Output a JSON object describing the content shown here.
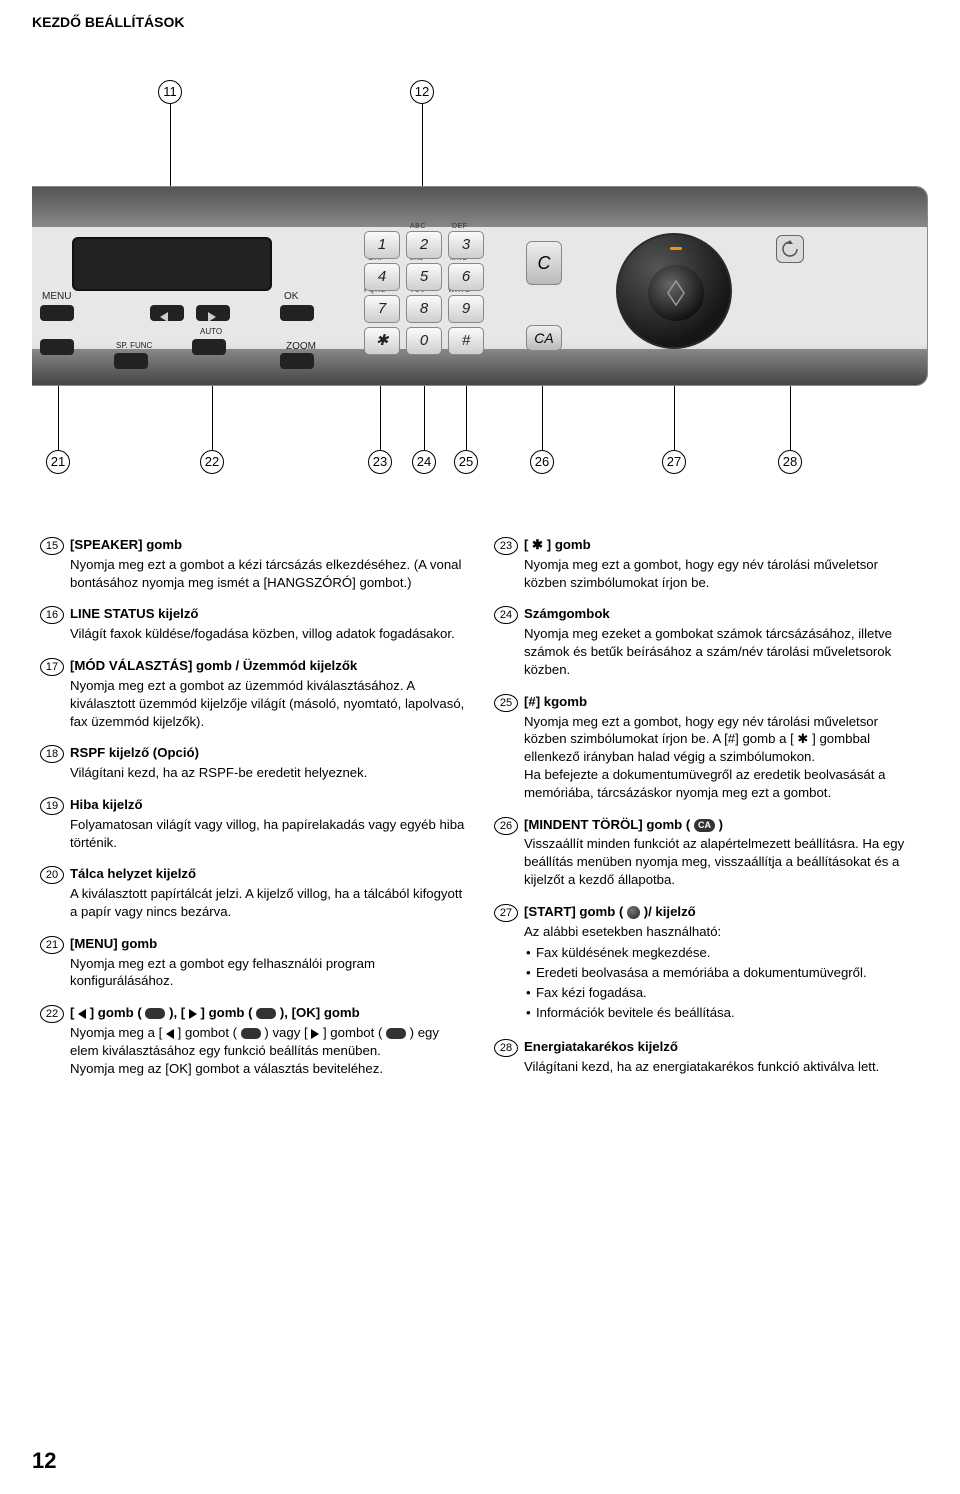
{
  "header": "KEZDŐ BEÁLLÍTÁSOK",
  "page_number": "12",
  "panel": {
    "menu": "MENU",
    "ok": "OK",
    "zoom": "ZOOM",
    "spfunc": "SP. FUNC",
    "auto": "AUTO",
    "c": "C",
    "ca": "CA",
    "keypad_labels": {
      "abc": "ABC",
      "def": "DEF",
      "ghi": "GHI",
      "jkl": "JKL",
      "mno": "MNO",
      "pqrs": "PQRS",
      "tuv": "TUV",
      "wxyz": "WXYZ"
    },
    "keys": [
      "1",
      "2",
      "3",
      "4",
      "5",
      "6",
      "7",
      "8",
      "9",
      "✱",
      "0",
      "#"
    ]
  },
  "callouts_top": {
    "c11": "11",
    "c12": "12"
  },
  "callouts_bot": {
    "c21": "21",
    "c22": "22",
    "c23": "23",
    "c24": "24",
    "c25": "25",
    "c26": "26",
    "c27": "27",
    "c28": "28"
  },
  "left": [
    {
      "n": "15",
      "title": "[SPEAKER] gomb",
      "desc": "Nyomja meg ezt a gombot a kézi tárcsázás elkezdéséhez. (A vonal bontásához nyomja meg ismét a [HANGSZÓRÓ] gombot.)"
    },
    {
      "n": "16",
      "title": "LINE STATUS kijelző",
      "desc": "Világít faxok küldése/fogadása közben, villog adatok fogadásakor."
    },
    {
      "n": "17",
      "title": "[MÓD VÁLASZTÁS] gomb / Üzemmód kijelzők",
      "desc": "Nyomja meg ezt a gombot az üzemmód kiválasztásához. A kiválasztott üzemmód kijelzője világít (másoló, nyomtató, lapolvasó, fax üzemmód kijelzők)."
    },
    {
      "n": "18",
      "title": "RSPF kijelző (Opció)",
      "desc": "Világítani kezd, ha az RSPF-be eredetit helyeznek."
    },
    {
      "n": "19",
      "title": "Hiba kijelző",
      "desc": "Folyamatosan világít vagy villog, ha papírelakadás vagy egyéb hiba történik."
    },
    {
      "n": "20",
      "title": "Tálca helyzet kijelző",
      "desc": "A kiválasztott papírtálcát jelzi. A kijelző villog, ha a tálcából kifogyott a papír vagy nincs bezárva."
    },
    {
      "n": "21",
      "title": "[MENU] gomb",
      "desc": "Nyomja meg ezt a gombot egy felhasználói program konfigurálásához."
    },
    {
      "n": "22",
      "title_html": "[ <tri-l></tri-l> ] gomb ( <pill></pill> ), [ <tri-r></tri-r> ] gomb ( <pill></pill> ), [OK] gomb",
      "desc_html": "Nyomja meg a [ <tri-l></tri-l> ] gombot ( <pill></pill> ) vagy [ <tri-r></tri-r> ] gombot ( <pill></pill> ) egy elem kiválasztásához egy funkció beállítás menüben.<br>Nyomja meg az [OK] gombot a választás beviteléhez."
    }
  ],
  "right": [
    {
      "n": "23",
      "title": "[ ✱ ] gomb",
      "desc": "Nyomja meg ezt a gombot, hogy egy név tárolási műveletsor közben szimbólumokat írjon be."
    },
    {
      "n": "24",
      "title": "Számgombok",
      "desc": "Nyomja meg ezeket a gombokat számok tárcsázásához, illetve számok és betűk beírásához a szám/név tárolási műveletsorok közben."
    },
    {
      "n": "25",
      "title": "[#] kgomb",
      "desc": "Nyomja meg ezt a gombot, hogy egy név tárolási műveletsor közben szimbólumokat írjon be. A [#] gomb a [ ✱ ] gombbal ellenkező irányban halad végig a szimbólumokon.\nHa befejezte a dokumentumüvegről az eredetik beolvasását a memóriába, tárcsázáskor nyomja meg ezt a gombot."
    },
    {
      "n": "26",
      "title_html": "[MINDENT TÖRÖL] gomb ( <span class=\"pill-ca\">CA</span> )",
      "desc": "Visszaállít minden funkciót az alapértelmezett beállításra. Ha egy beállítás menüben nyomja meg, visszaállítja a beállításokat és a kijelzőt a kezdő állapotba."
    },
    {
      "n": "27",
      "title_html": "[START] gomb ( <span class=\"start-ico\"></span> )/ kijelző",
      "desc": "Az alábbi esetekben használható:",
      "subs": [
        "Fax küldésének megkezdése.",
        "Eredeti beolvasása a memóriába a dokumentumüvegről.",
        "Fax kézi fogadása.",
        "Információk bevitele és beállítása."
      ]
    },
    {
      "n": "28",
      "title": "Energiatakarékos kijelző",
      "desc": "Világítani kezd, ha az energiatakarékos funkció aktiválva lett."
    }
  ]
}
